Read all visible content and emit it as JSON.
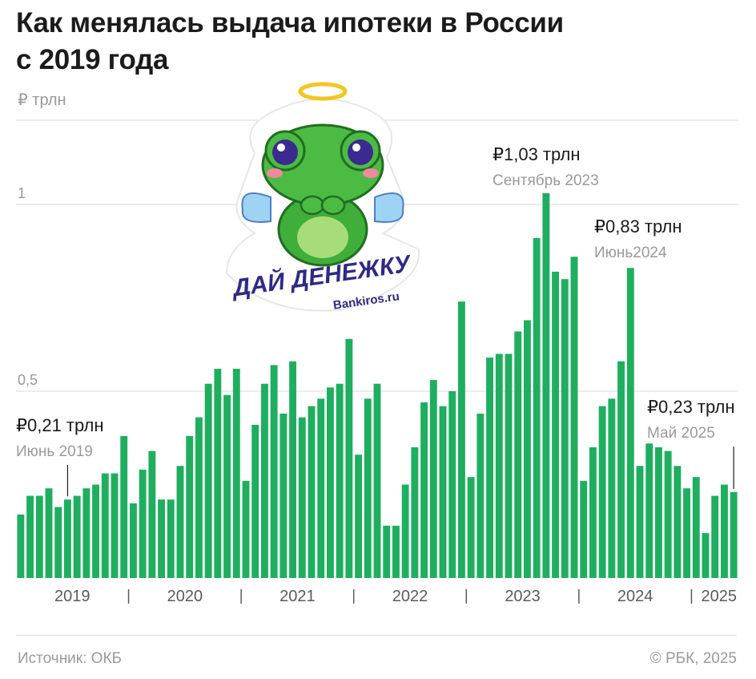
{
  "header": {
    "title_line1": "Как менялась выдача ипотеки в России",
    "title_line2": "с 2019 года",
    "unit": "₽ трлн"
  },
  "footer": {
    "source": "Источник: ОКБ",
    "copyright": "© РБК, 2025"
  },
  "sticker": {
    "caption": "ДАЙ ДЕНЕЖКУ",
    "site": "Bankiros.ru"
  },
  "colors": {
    "bar": "#1fae5f",
    "grid": "#d9d9d9",
    "axis_text": "#9a9a9a"
  },
  "annotations": [
    {
      "value": "₽0,21 трлн",
      "date": "Июнь 2019",
      "index": 5
    },
    {
      "value": "₽1,03 трлн",
      "date": "Сентябрь 2023",
      "index": 56
    },
    {
      "value": "₽0,83 трлн",
      "date": "Июнь2024",
      "index": 65
    },
    {
      "value": "₽0,23 трлн",
      "date": "Май 2025",
      "index": 76
    }
  ],
  "chart_data": {
    "type": "bar",
    "title": "Как менялась выдача ипотеки в России с 2019 года",
    "ylabel": "₽ трлн",
    "ylim": [
      0,
      1.2
    ],
    "y_ticks": [
      {
        "value": 0.5,
        "label": "0,5"
      },
      {
        "value": 1,
        "label": "1"
      }
    ],
    "grid": true,
    "year_labels": [
      "2019",
      "2020",
      "2021",
      "2022",
      "2023",
      "2024",
      "2025"
    ],
    "x": [
      "2019-01",
      "2019-02",
      "2019-03",
      "2019-04",
      "2019-05",
      "2019-06",
      "2019-07",
      "2019-08",
      "2019-09",
      "2019-10",
      "2019-11",
      "2019-12",
      "2020-01",
      "2020-02",
      "2020-03",
      "2020-04",
      "2020-05",
      "2020-06",
      "2020-07",
      "2020-08",
      "2020-09",
      "2020-10",
      "2020-11",
      "2020-12",
      "2021-01",
      "2021-02",
      "2021-03",
      "2021-04",
      "2021-05",
      "2021-06",
      "2021-07",
      "2021-08",
      "2021-09",
      "2021-10",
      "2021-11",
      "2021-12",
      "2022-01",
      "2022-02",
      "2022-03",
      "2022-04",
      "2022-05",
      "2022-06",
      "2022-07",
      "2022-08",
      "2022-09",
      "2022-10",
      "2022-11",
      "2022-12",
      "2023-01",
      "2023-02",
      "2023-03",
      "2023-04",
      "2023-05",
      "2023-06",
      "2023-07",
      "2023-08",
      "2023-09",
      "2023-10",
      "2023-11",
      "2023-12",
      "2024-01",
      "2024-02",
      "2024-03",
      "2024-04",
      "2024-05",
      "2024-06",
      "2024-07",
      "2024-08",
      "2024-09",
      "2024-10",
      "2024-11",
      "2024-12",
      "2025-01",
      "2025-02",
      "2025-03",
      "2025-04",
      "2025-05"
    ],
    "values": [
      0.17,
      0.22,
      0.22,
      0.24,
      0.19,
      0.21,
      0.22,
      0.24,
      0.25,
      0.28,
      0.28,
      0.38,
      0.2,
      0.29,
      0.34,
      0.21,
      0.21,
      0.3,
      0.38,
      0.43,
      0.52,
      0.56,
      0.49,
      0.56,
      0.26,
      0.41,
      0.52,
      0.57,
      0.44,
      0.58,
      0.43,
      0.46,
      0.48,
      0.51,
      0.52,
      0.64,
      0.33,
      0.48,
      0.52,
      0.14,
      0.14,
      0.25,
      0.35,
      0.47,
      0.53,
      0.46,
      0.5,
      0.74,
      0.27,
      0.44,
      0.59,
      0.6,
      0.6,
      0.66,
      0.69,
      0.91,
      1.03,
      0.82,
      0.8,
      0.86,
      0.26,
      0.35,
      0.46,
      0.48,
      0.58,
      0.83,
      0.3,
      0.36,
      0.35,
      0.34,
      0.3,
      0.24,
      0.27,
      0.12,
      0.22,
      0.25,
      0.23
    ]
  }
}
